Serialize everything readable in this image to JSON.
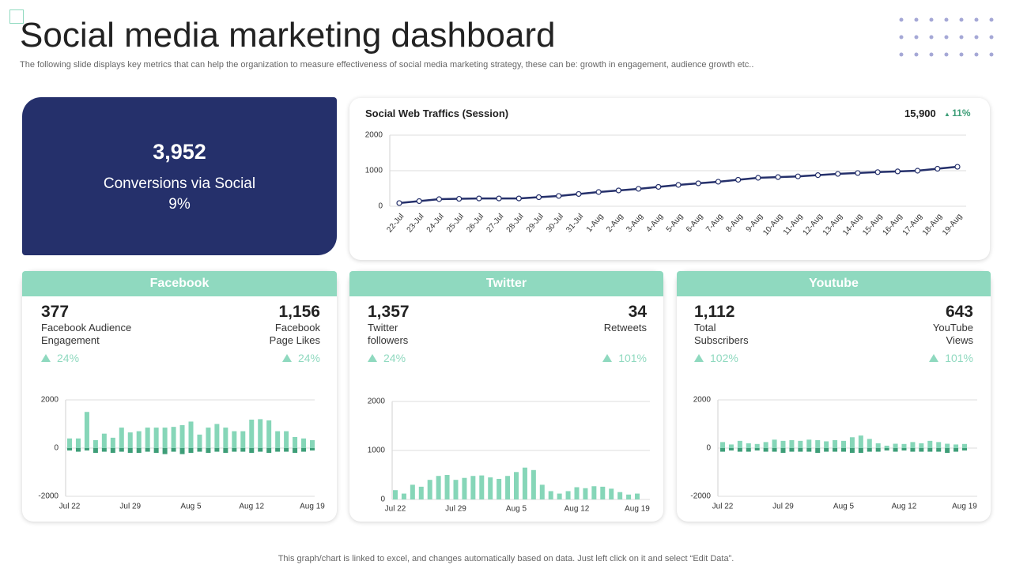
{
  "header": {
    "title": "Social media marketing dashboard",
    "subtitle": "The following slide displays key metrics that can help the organization to measure effectiveness of social media marketing strategy, these can be: growth in engagement, audience growth etc.."
  },
  "highlight": {
    "value": "3,952",
    "label": "Conversions via Social",
    "change": "9%"
  },
  "traffic": {
    "value": "15,900",
    "change": "11%"
  },
  "cards": [
    {
      "name": "Facebook",
      "metrics": [
        {
          "value": "377",
          "label": "Facebook Audience Engagement",
          "change": "24%"
        },
        {
          "value": "1,156",
          "label": "Facebook Page Likes",
          "change": "24%"
        }
      ]
    },
    {
      "name": "Twitter",
      "metrics": [
        {
          "value": "1,357",
          "label": "Twitter followers",
          "change": "24%"
        },
        {
          "value": "34",
          "label": "Retweets",
          "change": "101%"
        }
      ]
    },
    {
      "name": "Youtube",
      "metrics": [
        {
          "value": "1,112",
          "label": "Total Subscribers",
          "change": "102%"
        },
        {
          "value": "643",
          "label": "YouTube Views",
          "change": "101%"
        }
      ]
    }
  ],
  "footer": "This graph/chart is linked to excel,  and changes automatically based on data. Just left click on it and select “Edit Data”.",
  "chart_data": [
    {
      "type": "line",
      "title": "Social Web Traffics (Session)",
      "color": "#25306b",
      "categories": [
        "22-Jul",
        "23-Jul",
        "24-Jul",
        "25-Jul",
        "26-Jul",
        "27-Jul",
        "28-Jul",
        "29-Jul",
        "30-Jul",
        "31-Jul",
        "1-Aug",
        "2-Aug",
        "3-Aug",
        "4-Aug",
        "5-Aug",
        "6-Aug",
        "7-Aug",
        "8-Aug",
        "9-Aug",
        "10-Aug",
        "11-Aug",
        "12-Aug",
        "13-Aug",
        "14-Aug",
        "15-Aug",
        "16-Aug",
        "17-Aug",
        "18-Aug",
        "19-Aug"
      ],
      "values": [
        90,
        145,
        200,
        210,
        220,
        220,
        220,
        255,
        290,
        345,
        400,
        445,
        490,
        545,
        600,
        645,
        690,
        745,
        800,
        820,
        840,
        875,
        910,
        935,
        960,
        980,
        1000,
        1055,
        1110
      ],
      "ylim": [
        0,
        2000
      ],
      "yticks": [
        0,
        1000,
        2000
      ]
    },
    {
      "type": "bar",
      "categories": [
        "Jul 22",
        null,
        null,
        null,
        null,
        null,
        null,
        "Jul 29",
        null,
        null,
        null,
        null,
        null,
        null,
        "Aug 5",
        null,
        null,
        null,
        null,
        null,
        null,
        "Aug 12",
        null,
        null,
        null,
        null,
        null,
        null,
        "Aug 19"
      ],
      "series": [
        {
          "color": "#86d6b8",
          "values": [
            400,
            400,
            1500,
            330,
            600,
            430,
            850,
            650,
            700,
            850,
            850,
            850,
            880,
            950,
            1100,
            560,
            850,
            1000,
            850,
            700,
            700,
            1180,
            1200,
            1150,
            700,
            700,
            460,
            400,
            330
          ]
        },
        {
          "color": "#3e9e78",
          "values": [
            -100,
            -150,
            -100,
            -200,
            -150,
            -200,
            -150,
            -200,
            -200,
            -150,
            -200,
            -250,
            -150,
            -250,
            -200,
            -150,
            -200,
            -150,
            -200,
            -150,
            -150,
            -200,
            -150,
            -200,
            -150,
            -150,
            -200,
            -150,
            -100
          ]
        }
      ],
      "ylim": [
        -2000,
        2000
      ],
      "yticks": [
        -2000,
        0,
        2000
      ]
    },
    {
      "type": "bar",
      "categories": [
        "Jul 22",
        null,
        null,
        null,
        null,
        null,
        null,
        "Jul 29",
        null,
        null,
        null,
        null,
        null,
        null,
        "Aug 5",
        null,
        null,
        null,
        null,
        null,
        null,
        "Aug 12",
        null,
        null,
        null,
        null,
        null,
        null,
        "Aug 19"
      ],
      "series": [
        {
          "color": "#86d6b8",
          "values": [
            190,
            120,
            300,
            260,
            400,
            480,
            500,
            400,
            440,
            480,
            490,
            450,
            420,
            480,
            560,
            650,
            600,
            300,
            170,
            120,
            170,
            250,
            230,
            270,
            260,
            220,
            150,
            100,
            120
          ]
        }
      ],
      "ylim": [
        0,
        2000
      ],
      "yticks": [
        0,
        1000,
        2000
      ]
    },
    {
      "type": "bar",
      "categories": [
        "Jul 22",
        null,
        null,
        null,
        null,
        null,
        null,
        "Jul 29",
        null,
        null,
        null,
        null,
        null,
        null,
        "Aug 5",
        null,
        null,
        null,
        null,
        null,
        null,
        "Aug 12",
        null,
        null,
        null,
        null,
        null,
        null,
        "Aug 19"
      ],
      "series": [
        {
          "color": "#86d6b8",
          "values": [
            250,
            150,
            300,
            200,
            170,
            250,
            350,
            300,
            330,
            300,
            350,
            330,
            280,
            330,
            300,
            450,
            520,
            380,
            200,
            100,
            180,
            170,
            250,
            200,
            300,
            250,
            180,
            150,
            170
          ]
        },
        {
          "color": "#3e9e78",
          "values": [
            -150,
            -100,
            -150,
            -150,
            -100,
            -150,
            -150,
            -200,
            -150,
            -150,
            -150,
            -200,
            -150,
            -150,
            -150,
            -200,
            -200,
            -150,
            -150,
            -100,
            -150,
            -100,
            -150,
            -150,
            -150,
            -150,
            -200,
            -150,
            -100
          ]
        }
      ],
      "ylim": [
        -2000,
        2000
      ],
      "yticks": [
        -2000,
        0,
        2000
      ]
    }
  ]
}
